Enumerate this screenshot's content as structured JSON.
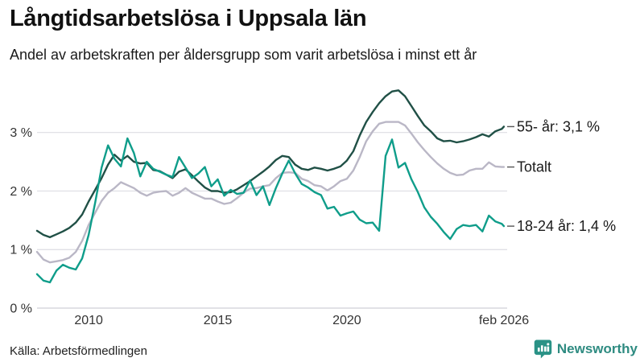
{
  "header": {
    "title": "Långtidsarbetslösa i Uppsala län",
    "subtitle": "Andel av arbetskraften per åldersgrupp som varit arbetslösa i minst ett år"
  },
  "footer": {
    "source": "Källa: Arbetsförmedlingen",
    "brand": "Newsworthy"
  },
  "colors": {
    "grid": "#dddde3",
    "baseline": "#cfcfd6",
    "axis_text": "#333333",
    "label_text": "#1a1a1a",
    "legend_dash": "#555555",
    "brand_teal": "#2e8b81"
  },
  "chart_data": {
    "type": "line",
    "title": "Långtidsarbetslösa i Uppsala län",
    "subtitle": "Andel av arbetskraften per åldersgrupp som varit arbetslösa i minst ett år",
    "unit": "% av arbetskraften",
    "grid": "horizontal",
    "legend_position": "right-end-labels",
    "xlim": [
      2008.0,
      2026.083
    ],
    "ylim": [
      0,
      3.82
    ],
    "x_ticks": [
      {
        "value": 2010,
        "label": "2010"
      },
      {
        "value": 2015,
        "label": "2015"
      },
      {
        "value": 2020,
        "label": "2020"
      },
      {
        "value": 2026.083,
        "label": "feb 2026"
      }
    ],
    "y_ticks": [
      {
        "value": 0,
        "label": "0 %"
      },
      {
        "value": 1,
        "label": "1 %"
      },
      {
        "value": 2,
        "label": "2 %"
      },
      {
        "value": 3,
        "label": "3 %"
      }
    ],
    "x": [
      2008.0,
      2008.25,
      2008.5,
      2008.75,
      2009.0,
      2009.25,
      2009.5,
      2009.75,
      2010.0,
      2010.25,
      2010.5,
      2010.75,
      2011.0,
      2011.25,
      2011.5,
      2011.75,
      2012.0,
      2012.25,
      2012.5,
      2012.75,
      2013.0,
      2013.25,
      2013.5,
      2013.75,
      2014.0,
      2014.25,
      2014.5,
      2014.75,
      2015.0,
      2015.25,
      2015.5,
      2015.75,
      2016.0,
      2016.25,
      2016.5,
      2016.75,
      2017.0,
      2017.25,
      2017.5,
      2017.75,
      2018.0,
      2018.25,
      2018.5,
      2018.75,
      2019.0,
      2019.25,
      2019.5,
      2019.75,
      2020.0,
      2020.25,
      2020.5,
      2020.75,
      2021.0,
      2021.25,
      2021.5,
      2021.75,
      2022.0,
      2022.25,
      2022.5,
      2022.75,
      2023.0,
      2023.25,
      2023.5,
      2023.75,
      2024.0,
      2024.25,
      2024.5,
      2024.75,
      2025.0,
      2025.25,
      2025.5,
      2025.75,
      2026.0,
      2026.08
    ],
    "series": [
      {
        "name": "Totalt",
        "end_label": "Totalt",
        "end_value": null,
        "color": "#bab7c6",
        "values": [
          0.96,
          0.83,
          0.78,
          0.8,
          0.82,
          0.86,
          0.96,
          1.15,
          1.42,
          1.63,
          1.83,
          1.97,
          2.05,
          2.15,
          2.1,
          2.05,
          1.97,
          1.92,
          1.97,
          1.99,
          2.0,
          1.92,
          1.97,
          2.05,
          1.97,
          1.92,
          1.87,
          1.87,
          1.82,
          1.78,
          1.8,
          1.88,
          1.97,
          2.04,
          2.05,
          2.08,
          2.1,
          2.22,
          2.31,
          2.32,
          2.31,
          2.21,
          2.17,
          2.1,
          2.08,
          2.01,
          2.08,
          2.17,
          2.21,
          2.35,
          2.58,
          2.85,
          3.02,
          3.15,
          3.18,
          3.18,
          3.18,
          3.12,
          2.98,
          2.83,
          2.7,
          2.58,
          2.47,
          2.38,
          2.31,
          2.27,
          2.28,
          2.35,
          2.38,
          2.38,
          2.49,
          2.42,
          2.41,
          2.41
        ]
      },
      {
        "name": "55- år",
        "end_label": "55- år: 3,1 %",
        "end_value": "3,1 %",
        "color": "#205046",
        "values": [
          1.32,
          1.25,
          1.21,
          1.26,
          1.31,
          1.37,
          1.46,
          1.6,
          1.82,
          2.02,
          2.22,
          2.45,
          2.62,
          2.52,
          2.6,
          2.5,
          2.47,
          2.48,
          2.36,
          2.34,
          2.28,
          2.22,
          2.33,
          2.37,
          2.27,
          2.16,
          2.06,
          2.0,
          2.0,
          1.97,
          1.98,
          2.03,
          2.1,
          2.17,
          2.25,
          2.33,
          2.42,
          2.53,
          2.6,
          2.58,
          2.45,
          2.38,
          2.36,
          2.4,
          2.38,
          2.35,
          2.38,
          2.42,
          2.52,
          2.68,
          2.95,
          3.18,
          3.35,
          3.5,
          3.62,
          3.7,
          3.72,
          3.62,
          3.45,
          3.28,
          3.12,
          3.02,
          2.9,
          2.85,
          2.86,
          2.83,
          2.85,
          2.88,
          2.92,
          2.97,
          2.93,
          3.02,
          3.06,
          3.1
        ]
      },
      {
        "name": "18-24 år",
        "end_label": "18-24 år: 1,4 %",
        "end_value": "1,4 %",
        "color": "#0f9d8a",
        "values": [
          0.58,
          0.47,
          0.44,
          0.64,
          0.74,
          0.69,
          0.66,
          0.85,
          1.25,
          1.8,
          2.4,
          2.78,
          2.55,
          2.42,
          2.9,
          2.65,
          2.25,
          2.5,
          2.38,
          2.33,
          2.28,
          2.24,
          2.58,
          2.4,
          2.22,
          2.3,
          2.41,
          2.08,
          2.2,
          1.92,
          2.02,
          1.95,
          1.97,
          2.18,
          1.93,
          2.08,
          1.76,
          2.05,
          2.3,
          2.52,
          2.3,
          2.12,
          2.06,
          1.98,
          1.93,
          1.7,
          1.73,
          1.58,
          1.62,
          1.65,
          1.51,
          1.45,
          1.46,
          1.32,
          2.6,
          2.88,
          2.4,
          2.48,
          2.2,
          1.98,
          1.72,
          1.56,
          1.44,
          1.3,
          1.18,
          1.35,
          1.42,
          1.4,
          1.42,
          1.31,
          1.58,
          1.48,
          1.44,
          1.4
        ]
      }
    ]
  }
}
